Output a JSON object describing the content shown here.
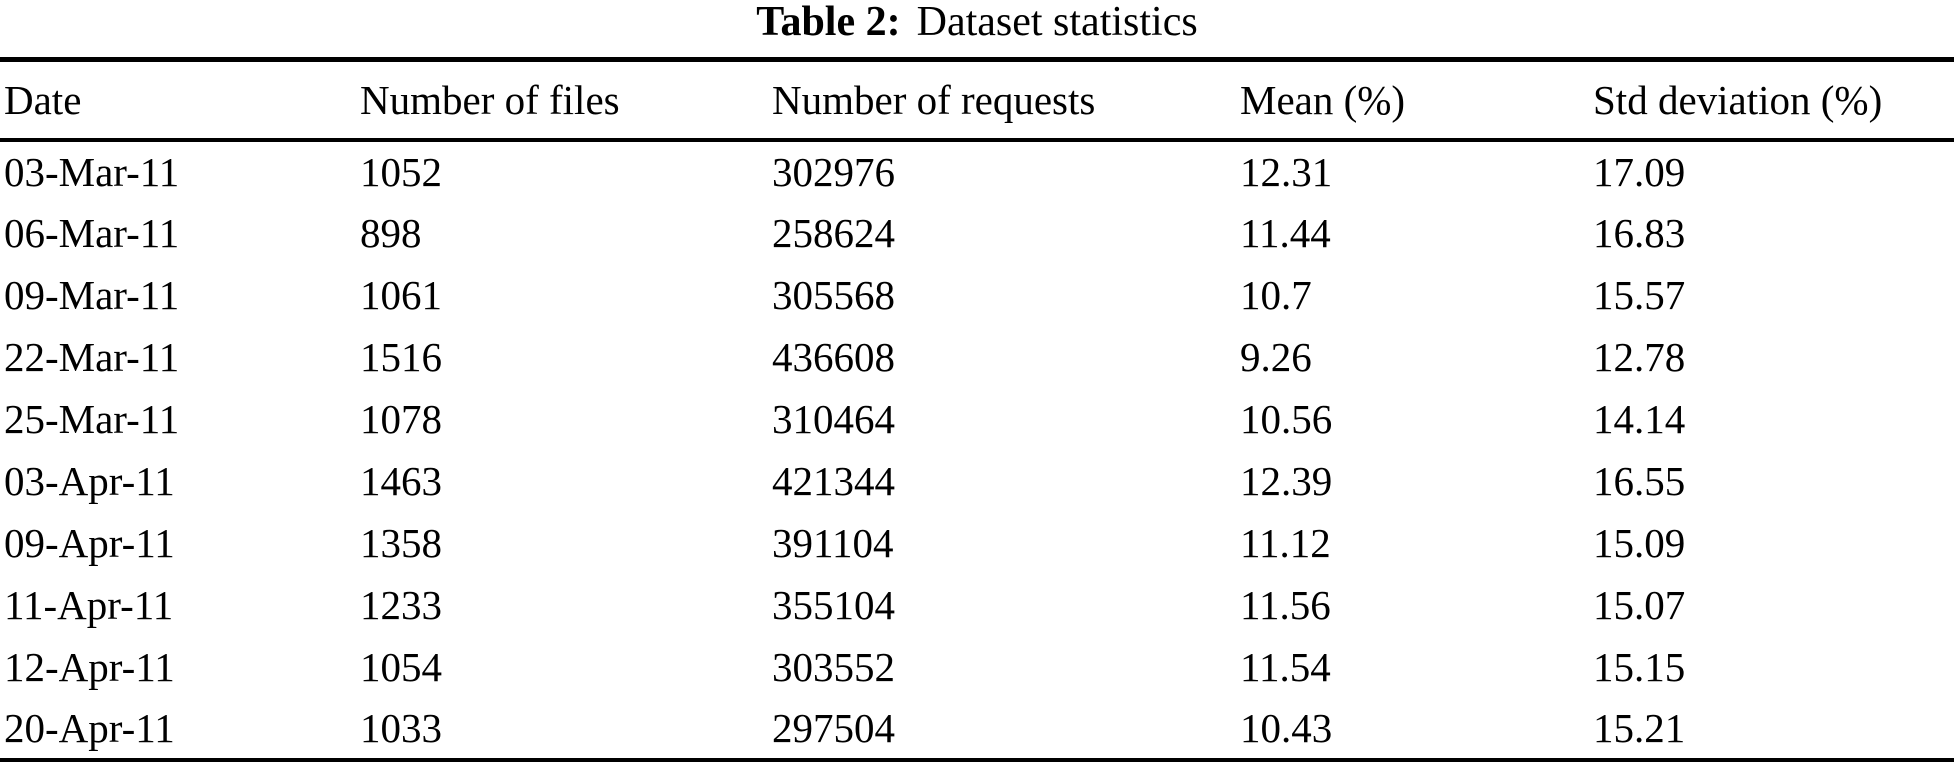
{
  "caption": {
    "label": "Table 2:",
    "text": "Dataset statistics"
  },
  "table": {
    "columns": [
      "Date",
      "Number of files",
      "Number of requests",
      "Mean (%)",
      "Std deviation (%)"
    ],
    "rows": [
      [
        "03-Mar-11",
        "1052",
        "302976",
        "12.31",
        "17.09"
      ],
      [
        "06-Mar-11",
        "898",
        "258624",
        "11.44",
        "16.83"
      ],
      [
        "09-Mar-11",
        "1061",
        "305568",
        "10.7",
        "15.57"
      ],
      [
        "22-Mar-11",
        "1516",
        "436608",
        "9.26",
        "12.78"
      ],
      [
        "25-Mar-11",
        "1078",
        "310464",
        "10.56",
        "14.14"
      ],
      [
        "03-Apr-11",
        "1463",
        "421344",
        "12.39",
        "16.55"
      ],
      [
        "09-Apr-11",
        "1358",
        "391104",
        "11.12",
        "15.09"
      ],
      [
        "11-Apr-11",
        "1233",
        "355104",
        "11.56",
        "15.07"
      ],
      [
        "12-Apr-11",
        "1054",
        "303552",
        "11.54",
        "15.15"
      ],
      [
        "20-Apr-11",
        "1033",
        "297504",
        "10.43",
        "15.21"
      ]
    ],
    "colors": {
      "text": "#000000",
      "background": "#ffffff",
      "rule": "#000000"
    }
  }
}
